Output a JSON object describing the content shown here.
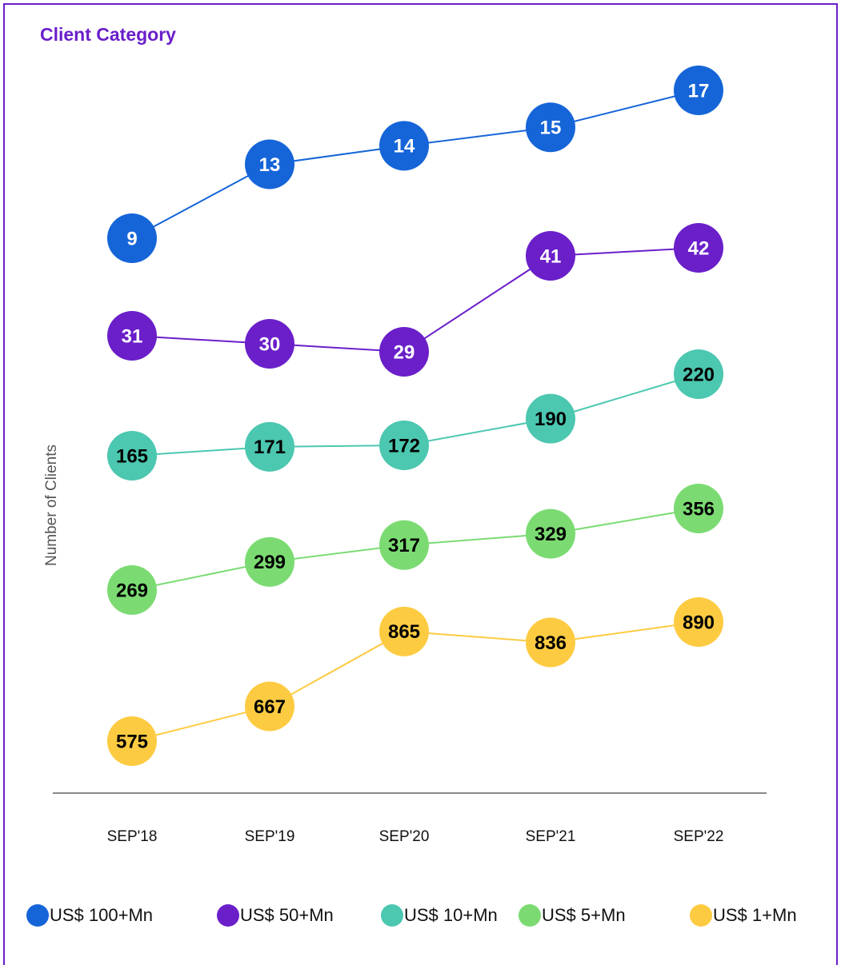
{
  "chart_data": {
    "type": "line",
    "title": "Client Category",
    "y_label": "Number of Clients",
    "categories": [
      "SEP'18",
      "SEP'19",
      "SEP'20",
      "SEP'21",
      "SEP'22"
    ],
    "series": [
      {
        "name": "US$ 100+Mn",
        "color": "#1565d8",
        "values": [
          9,
          13,
          14,
          15,
          17
        ]
      },
      {
        "name": "US$ 50+Mn",
        "color": "#6a1fc9",
        "values": [
          31,
          30,
          29,
          41,
          42
        ]
      },
      {
        "name": "US$ 10+Mn",
        "color": "#4cc7b0",
        "values": [
          165,
          171,
          172,
          190,
          220
        ]
      },
      {
        "name": "US$ 5+Mn",
        "color": "#7bdb72",
        "values": [
          269,
          299,
          317,
          329,
          356
        ]
      },
      {
        "name": "US$ 1+Mn",
        "color": "#fdcb42",
        "values": [
          575,
          667,
          865,
          836,
          890
        ]
      }
    ]
  }
}
